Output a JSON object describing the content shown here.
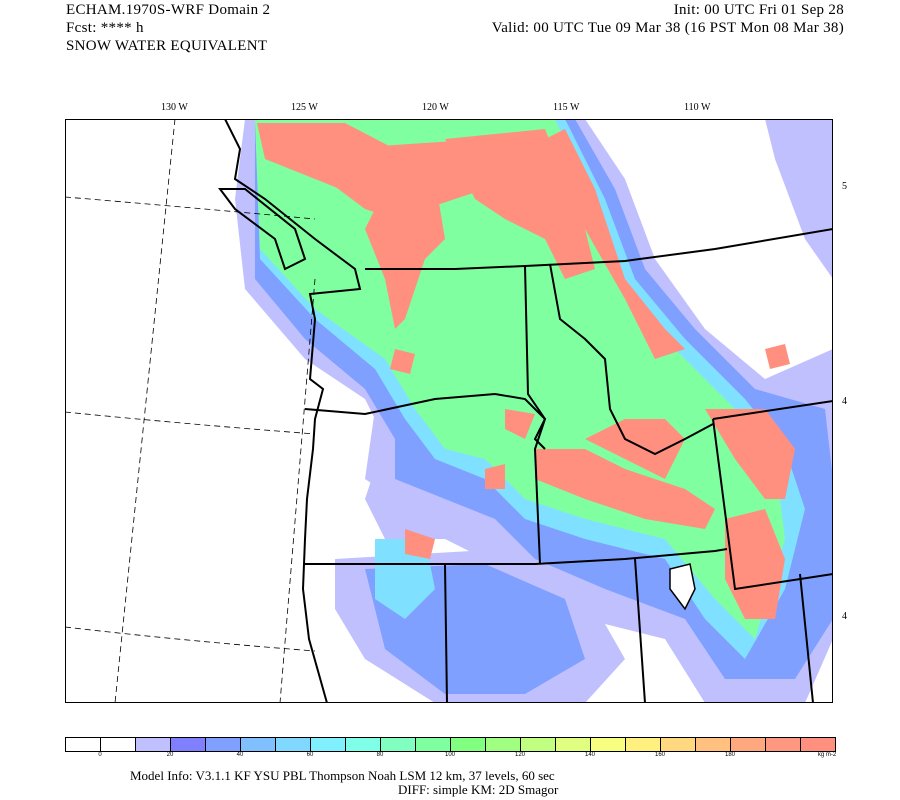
{
  "header": {
    "model_title": "ECHAM.1970S-WRF Domain 2",
    "forecast": "Fcst: **** h",
    "field": "SNOW WATER EQUIVALENT",
    "init": "Init: 00 UTC Fri 01 Sep 28",
    "valid": "Valid: 00 UTC Tue 09 Mar 38 (16 PST Mon 08 Mar 38)"
  },
  "map": {
    "longitude_labels": [
      "130 W",
      "125 W",
      "120 W",
      "115 W",
      "110 W"
    ],
    "latitude_labels": [
      "5",
      "4",
      "4"
    ],
    "region": "Pacific Northwest US / SW Canada",
    "line_color": "#000000",
    "max_fill_color": "#ff9080"
  },
  "colorbar": {
    "colors": [
      "#ffffff",
      "#ffffff",
      "#c0c0ff",
      "#8080ff",
      "#80a0ff",
      "#80c0ff",
      "#80d8ff",
      "#80f0ff",
      "#80ffe8",
      "#80ffc0",
      "#80ffa0",
      "#80ff80",
      "#a0ff80",
      "#c0ff80",
      "#e0ff80",
      "#f8ff80",
      "#fff080",
      "#ffd880",
      "#ffc080",
      "#ffa880",
      "#ff9880",
      "#ff9080"
    ],
    "tick_labels": [
      "0",
      "20",
      "40",
      "60",
      "80",
      "100",
      "120",
      "140",
      "160",
      "180"
    ],
    "units": "kg m-2"
  },
  "footer": {
    "line1": "Model Info: V3.1.1    KF       YSU PBL   Thompson     Noah LSM   12 km,    37 levels,    60 sec",
    "line2": "DIFF: simple KM: 2D Smagor"
  }
}
